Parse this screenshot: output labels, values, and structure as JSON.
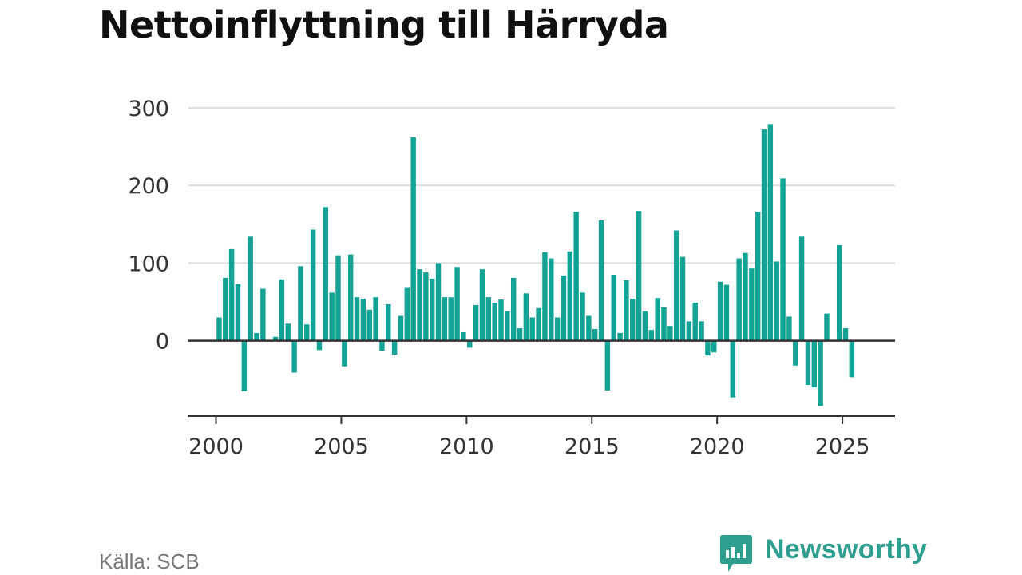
{
  "title": "Nettoinflyttning till Härryda",
  "source": "Källa: SCB",
  "brand": {
    "name": "Newsworthy",
    "icon": "newsworthy-logo-icon",
    "color": "#2e9e8f"
  },
  "colors": {
    "bar": "#12a396",
    "grid": "#dddddd",
    "axis": "#333333",
    "tick_label": "#333333"
  },
  "chart_data": {
    "type": "bar",
    "title": "Nettoinflyttning till Härryda",
    "xlabel": "",
    "ylabel": "",
    "grid": true,
    "legend": "none",
    "x_ticks": [
      "2000",
      "2005",
      "2010",
      "2015",
      "2020",
      "2025"
    ],
    "y_ticks": [
      "0",
      "100",
      "200",
      "300"
    ],
    "xlim": [
      1998.9,
      2027.1
    ],
    "ylim": [
      -97,
      305
    ],
    "x_start": 2000.125,
    "x_step": 0.25,
    "series": [
      {
        "values": [
          30,
          81,
          118,
          73,
          -65,
          134,
          10,
          67,
          0,
          5,
          79,
          22,
          -41,
          96,
          21,
          143,
          -12,
          172,
          62,
          110,
          -33,
          111,
          56,
          54,
          40,
          56,
          -13,
          47,
          -18,
          32,
          68,
          262,
          92,
          88,
          80,
          100,
          56,
          56,
          95,
          11,
          -9,
          46,
          92,
          56,
          49,
          53,
          38,
          81,
          16,
          61,
          30,
          42,
          114,
          106,
          30,
          84,
          115,
          166,
          62,
          32,
          15,
          155,
          -64,
          85,
          10,
          78,
          54,
          167,
          38,
          14,
          55,
          43,
          19,
          142,
          108,
          25,
          49,
          25,
          -19,
          -15,
          76,
          72,
          -73,
          106,
          113,
          93,
          166,
          272,
          279,
          102,
          209,
          31,
          -32,
          134,
          -57,
          -60,
          -84,
          35,
          0,
          123,
          16,
          -47
        ]
      }
    ]
  }
}
